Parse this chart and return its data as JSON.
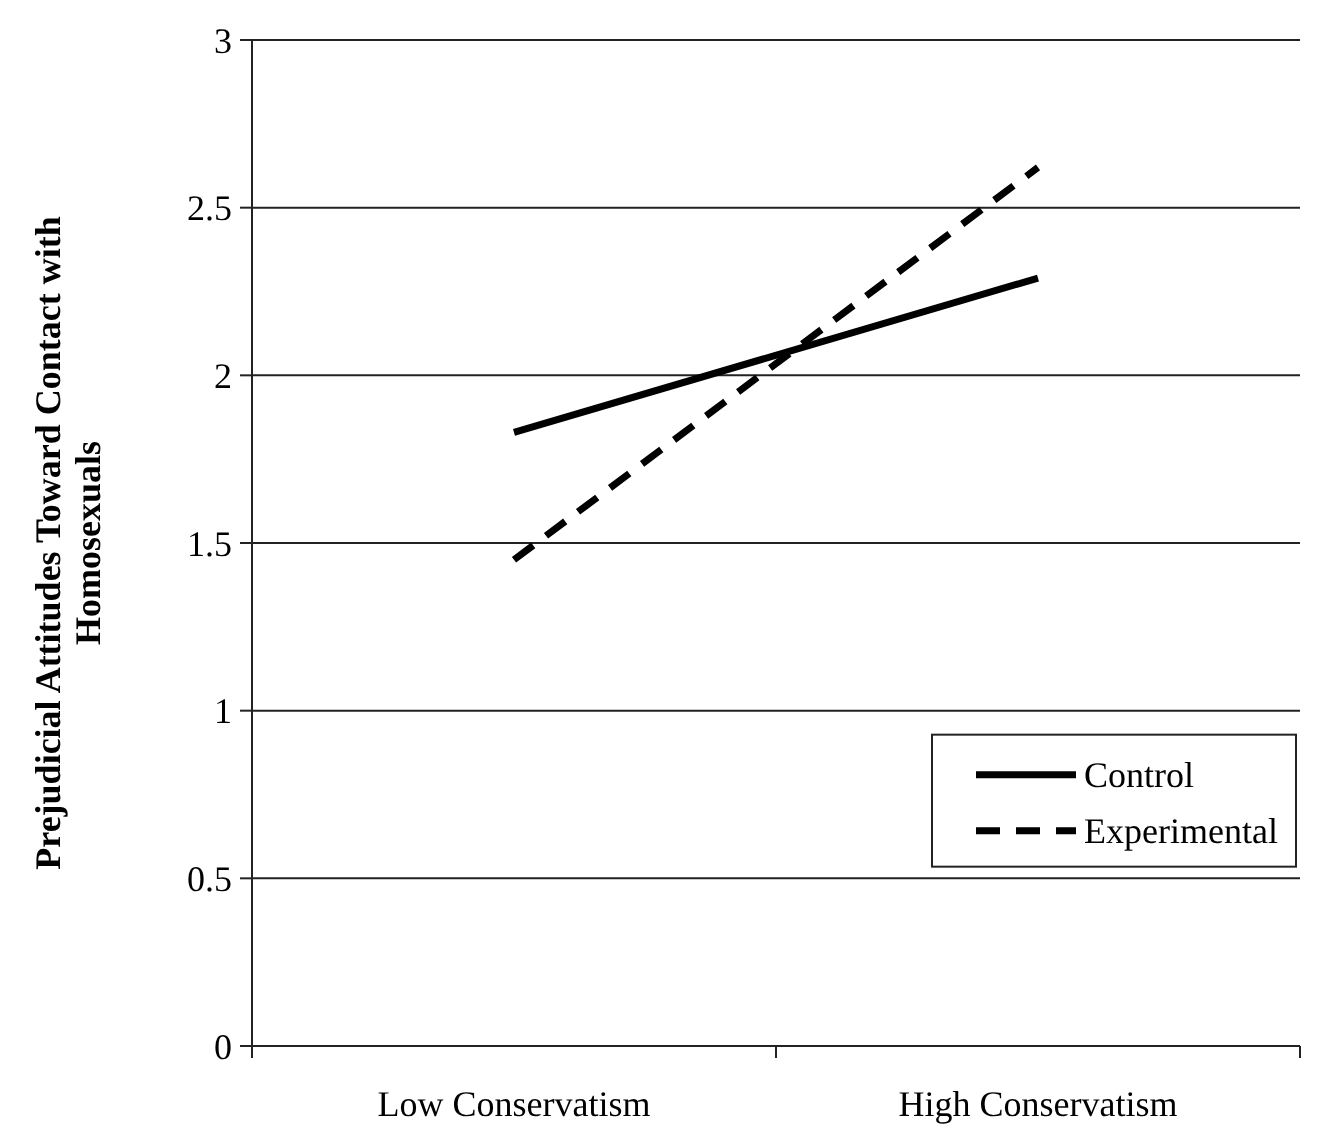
{
  "chart_data": {
    "type": "line",
    "ylabel": "Prejudicial Attitudes Toward Contact with Homosexuals",
    "categories": [
      "Low Conservatism",
      "High Conservatism"
    ],
    "series": [
      {
        "name": "Control",
        "color": "#000000",
        "values": [
          1.83,
          2.29
        ],
        "line_style": "solid"
      },
      {
        "name": "Experimental",
        "color": "#000000",
        "values": [
          1.45,
          2.62
        ],
        "line_style": "dashed"
      }
    ],
    "ylim": [
      0,
      3
    ],
    "yticks": [
      0,
      0.5,
      1,
      1.5,
      2,
      2.5,
      3
    ],
    "grid": "y",
    "legend": "bottom right",
    "marker": "none"
  }
}
